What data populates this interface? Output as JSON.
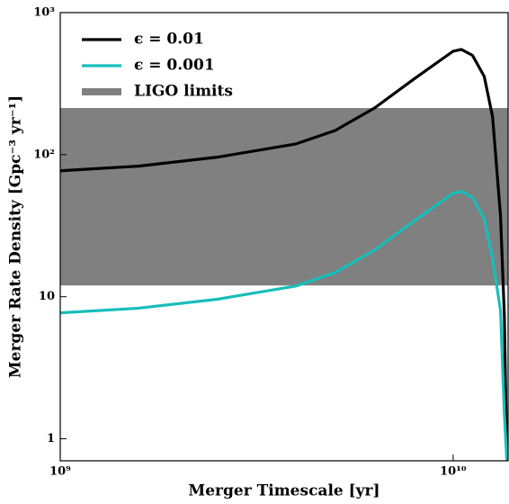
{
  "chart_data": {
    "type": "line",
    "x_label": "Merger Timescale [yr]",
    "y_label": "Merger Rate Density [Gpc⁻³ yr⁻¹]",
    "xscale": "log",
    "yscale": "log",
    "xlim": [
      1000000000,
      13800000000
    ],
    "ylim": [
      0.7,
      1000
    ],
    "xticks": [
      {
        "value": 1000000000,
        "label": "10⁹"
      },
      {
        "value": 10000000000,
        "label": "10¹⁰"
      }
    ],
    "yticks": [
      1,
      10,
      {
        "value": 100,
        "label": "10²"
      },
      {
        "value": 1000,
        "label": "10³"
      }
    ],
    "legend": "upper left",
    "x": [
      1000000000,
      1580000000,
      2510000000,
      3980000000,
      5010000000,
      6310000000,
      7940000000,
      10000000000,
      10500000000,
      11200000000,
      12000000000,
      12600000000,
      13200000000,
      13500000000,
      13700000000
    ],
    "series": [
      {
        "name": "ϵ = 0.01",
        "color": "#000000",
        "values": [
          77,
          83,
          96,
          119,
          148,
          213,
          340,
          535,
          550,
          500,
          355,
          185,
          37,
          7.4,
          0.7
        ]
      },
      {
        "name": "ϵ = 0.001",
        "color": "#17bebb",
        "values": [
          7.7,
          8.3,
          9.6,
          11.9,
          14.8,
          21.3,
          34,
          53.5,
          55,
          50,
          35.5,
          18.5,
          8,
          1.5,
          0.7
        ]
      }
    ],
    "band": {
      "name": "LIGO limits",
      "color": "#808080",
      "range": [
        12,
        213
      ]
    }
  }
}
